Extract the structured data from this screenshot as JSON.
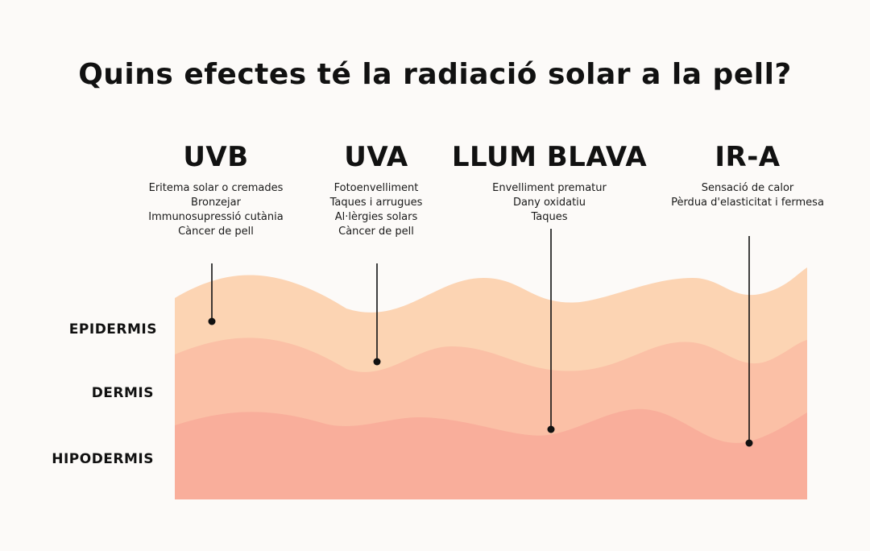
{
  "title": "Quins efectes té la radiació solar a la pell?",
  "radiations": [
    {
      "name": "UVB",
      "effects": [
        "Eritema solar o cremades",
        "Bronzejar",
        "Immunosupressió cutània",
        "Càncer de pell"
      ],
      "reaches_layer": "EPIDERMIS"
    },
    {
      "name": "UVA",
      "effects": [
        "Fotoenvelliment",
        "Taques i arrugues",
        "Al·lèrgies solars",
        "Càncer de pell"
      ],
      "reaches_layer": "DERMIS"
    },
    {
      "name": "LLUM BLAVA",
      "effects": [
        "Envelliment prematur",
        "Dany oxidatiu",
        "Taques"
      ],
      "reaches_layer": "HIPODERMIS"
    },
    {
      "name": "IR-A",
      "effects": [
        "Sensació de calor",
        "Pèrdua d'elasticitat i fermesa"
      ],
      "reaches_layer": "HIPODERMIS"
    }
  ],
  "layers": [
    {
      "name": "EPIDERMIS",
      "color": "#fcd4b3"
    },
    {
      "name": "DERMIS",
      "color": "#fbc0a6"
    },
    {
      "name": "HIPODERMIS",
      "color": "#f9ae9b"
    }
  ],
  "colors": {
    "background": "#fcfaf8",
    "text": "#111111",
    "pointer": "#111111"
  }
}
